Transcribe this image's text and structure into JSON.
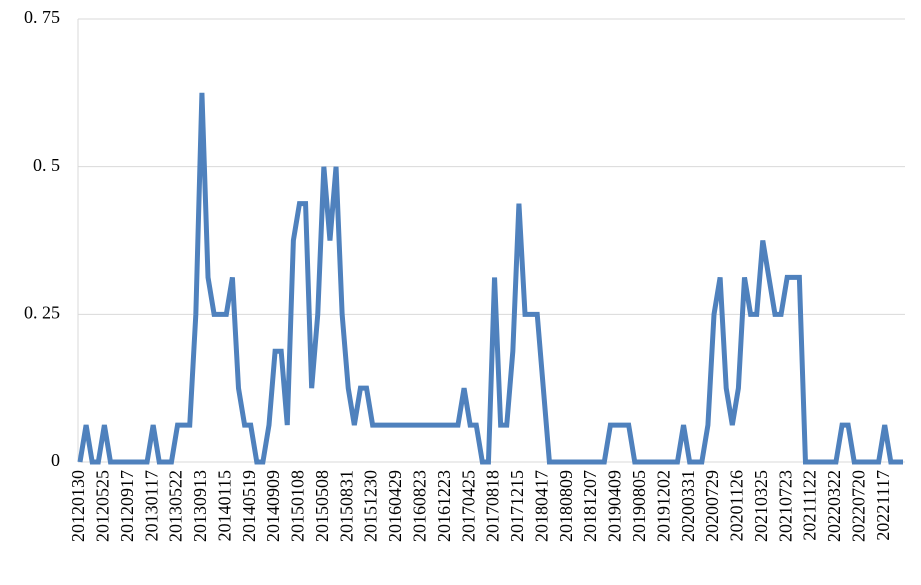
{
  "chart_data": {
    "type": "line",
    "categories": [
      "20120130",
      null,
      null,
      null,
      "20120525",
      null,
      null,
      null,
      "20120917",
      null,
      null,
      null,
      "20130117",
      null,
      null,
      null,
      "20130522",
      null,
      null,
      null,
      "20130913",
      null,
      null,
      null,
      "20140115",
      null,
      null,
      null,
      "20140519",
      null,
      null,
      null,
      "20140909",
      null,
      null,
      null,
      "20150108",
      null,
      null,
      null,
      "20150508",
      null,
      null,
      null,
      "20150831",
      null,
      null,
      null,
      "20151230",
      null,
      null,
      null,
      "20160429",
      null,
      null,
      null,
      "20160823",
      null,
      null,
      null,
      "20161223",
      null,
      null,
      null,
      "20170425",
      null,
      null,
      null,
      "20170818",
      null,
      null,
      null,
      "20171215",
      null,
      null,
      null,
      "20180417",
      null,
      null,
      null,
      "20180809",
      null,
      null,
      null,
      "20181207",
      null,
      null,
      null,
      "20190409",
      null,
      null,
      null,
      "20190805",
      null,
      null,
      null,
      "20191202",
      null,
      null,
      null,
      "20200331",
      null,
      null,
      null,
      "20200729",
      null,
      null,
      null,
      "20201126",
      null,
      null,
      null,
      "20210325",
      null,
      null,
      null,
      "20210723",
      null,
      null,
      null,
      "20211122",
      null,
      null,
      null,
      "20220322",
      null,
      null,
      null,
      "20220720",
      null,
      null,
      null,
      "20221117",
      null,
      null,
      null
    ],
    "values": [
      0,
      0.0625,
      0,
      0,
      0.0625,
      0,
      0,
      0,
      0,
      0,
      0,
      0,
      0.0625,
      0,
      0,
      0,
      0.0625,
      0.0625,
      0.0625,
      0.25,
      0.625,
      0.3125,
      0.25,
      0.25,
      0.25,
      0.3125,
      0.125,
      0.0625,
      0.0625,
      0,
      0,
      0.0625,
      0.1875,
      0.1875,
      0.0625,
      0.375,
      0.4375,
      0.4375,
      0.125,
      0.25,
      0.5,
      0.375,
      0.5,
      0.25,
      0.125,
      0.0625,
      0.125,
      0.125,
      0.0625,
      0.0625,
      0.0625,
      0.0625,
      0.0625,
      0.0625,
      0.0625,
      0.0625,
      0.0625,
      0.0625,
      0.0625,
      0.0625,
      0.0625,
      0.0625,
      0.0625,
      0.125,
      0.0625,
      0.0625,
      0,
      0,
      0.3125,
      0.0625,
      0.0625,
      0.1875,
      0.4375,
      0.25,
      0.25,
      0.25,
      0.125,
      0,
      0,
      0,
      0,
      0,
      0,
      0,
      0,
      0,
      0,
      0.0625,
      0.0625,
      0.0625,
      0.0625,
      0,
      0,
      0,
      0,
      0,
      0,
      0,
      0,
      0.0625,
      0,
      0,
      0,
      0.0625,
      0.25,
      0.3125,
      0.125,
      0.0625,
      0.125,
      0.3125,
      0.25,
      0.25,
      0.375,
      0.3125,
      0.25,
      0.25,
      0.3125,
      0.3125,
      0.3125,
      0,
      0,
      0,
      0,
      0,
      0,
      0.0625,
      0.0625,
      0,
      0,
      0,
      0,
      0,
      0.0625,
      0,
      0,
      0
    ],
    "color": "#4f81bd",
    "ylim": [
      0,
      0.75
    ],
    "yticks": [
      0,
      {
        "value": 0.25,
        "label": "0. 25"
      },
      {
        "value": 0.5,
        "label": "0. 5"
      },
      {
        "value": 0.75,
        "label": "0. 75"
      }
    ],
    "grid": true
  }
}
